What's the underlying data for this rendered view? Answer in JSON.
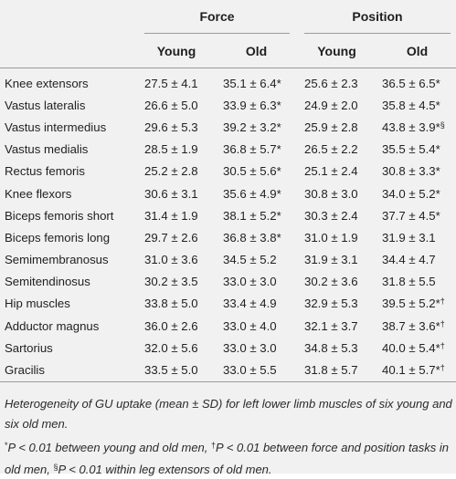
{
  "header": {
    "group_force": "Force",
    "group_position": "Position",
    "col_young": "Young",
    "col_old": "Old"
  },
  "rows": [
    {
      "name": "Knee extensors",
      "fy": "27.5 ± 4.1",
      "fo": "35.1 ± 6.4",
      "fo_mark": "*",
      "py": "25.6 ± 2.3",
      "po": "36.5 ± 6.5",
      "po_mark": "*"
    },
    {
      "name": "Vastus lateralis",
      "fy": "26.6 ± 5.0",
      "fo": "33.9 ± 6.3",
      "fo_mark": "*",
      "py": "24.9 ± 2.0",
      "po": "35.8 ± 4.5",
      "po_mark": "*"
    },
    {
      "name": "Vastus intermedius",
      "fy": "29.6 ± 5.3",
      "fo": "39.2 ± 3.2",
      "fo_mark": "*",
      "py": "25.9 ± 2.8",
      "po": "43.8 ± 3.9",
      "po_mark": "*§"
    },
    {
      "name": "Vastus medialis",
      "fy": "28.5 ± 1.9",
      "fo": "36.8 ± 5.7",
      "fo_mark": "*",
      "py": "26.5 ± 2.2",
      "po": "35.5 ± 5.4",
      "po_mark": "*"
    },
    {
      "name": "Rectus femoris",
      "fy": "25.2 ± 2.8",
      "fo": "30.5 ± 5.6",
      "fo_mark": "*",
      "py": "25.1 ± 2.4",
      "po": "30.8 ± 3.3",
      "po_mark": "*"
    },
    {
      "name": "Knee flexors",
      "fy": "30.6 ± 3.1",
      "fo": "35.6 ± 4.9",
      "fo_mark": "*",
      "py": "30.8 ± 3.0",
      "po": "34.0 ± 5.2",
      "po_mark": "*"
    },
    {
      "name": "Biceps femoris short",
      "fy": "31.4 ± 1.9",
      "fo": "38.1 ± 5.2",
      "fo_mark": "*",
      "py": "30.3 ± 2.4",
      "po": "37.7 ± 4.5",
      "po_mark": "*"
    },
    {
      "name": "Biceps femoris long",
      "fy": "29.7 ± 2.6",
      "fo": "36.8 ± 3.8",
      "fo_mark": "*",
      "py": "31.0 ± 1.9",
      "po": "31.9 ± 3.1",
      "po_mark": ""
    },
    {
      "name": "Semimembranosus",
      "fy": "31.0 ± 3.6",
      "fo": "34.5 ± 5.2",
      "fo_mark": "",
      "py": "31.9 ± 3.1",
      "po": "34.4 ± 4.7",
      "po_mark": ""
    },
    {
      "name": "Semitendinosus",
      "fy": "30.2 ± 3.5",
      "fo": "33.0 ± 3.0",
      "fo_mark": "",
      "py": "30.2 ± 3.6",
      "po": "31.8 ± 5.5",
      "po_mark": ""
    },
    {
      "name": "Hip muscles",
      "fy": "33.8 ± 5.0",
      "fo": "33.4 ± 4.9",
      "fo_mark": "",
      "py": "32.9 ± 5.3",
      "po": "39.5 ± 5.2",
      "po_mark": "*†"
    },
    {
      "name": "Adductor magnus",
      "fy": "36.0 ± 2.6",
      "fo": "33.0 ± 4.0",
      "fo_mark": "",
      "py": "32.1 ± 3.7",
      "po": "38.7 ± 3.6",
      "po_mark": "*†"
    },
    {
      "name": "Sartorius",
      "fy": "32.0 ± 5.6",
      "fo": "33.0 ± 3.0",
      "fo_mark": "",
      "py": "34.8 ± 5.3",
      "po": "40.0 ± 5.4",
      "po_mark": "*†"
    },
    {
      "name": "Gracilis",
      "fy": "33.5 ± 5.0",
      "fo": "33.0 ± 5.5",
      "fo_mark": "",
      "py": "31.8 ± 5.7",
      "po": "40.1 ± 5.7",
      "po_mark": "*†"
    }
  ],
  "notes": {
    "caption": "Heterogeneity of GU uptake (mean ± SD) for left lower limb muscles of six young and six old men.",
    "fn1_mark": "*",
    "fn1_text": "P < 0.01 between young and old men, ",
    "fn2_mark": "†",
    "fn2_text": "P < 0.01 between force and position tasks in old men, ",
    "fn3_mark": "§",
    "fn3_text": "P < 0.01 within leg extensors of old men."
  }
}
